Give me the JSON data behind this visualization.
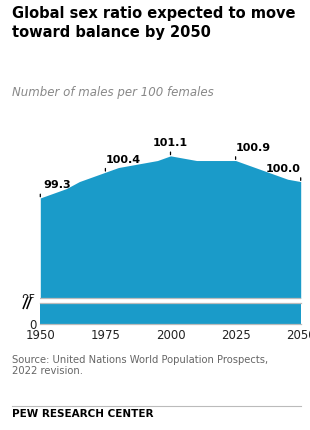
{
  "title": "Global sex ratio expected to move\ntoward balance by 2050",
  "subtitle": "Number of males per 100 females",
  "years": [
    1950,
    1955,
    1960,
    1965,
    1970,
    1975,
    1980,
    1985,
    1990,
    1995,
    2000,
    2005,
    2010,
    2015,
    2020,
    2025,
    2030,
    2035,
    2040,
    2045,
    2050
  ],
  "values": [
    99.3,
    99.5,
    99.7,
    100.0,
    100.2,
    100.4,
    100.6,
    100.7,
    100.8,
    100.9,
    101.1,
    101.0,
    100.9,
    100.9,
    100.9,
    100.9,
    100.7,
    100.5,
    100.3,
    100.1,
    100.0
  ],
  "fill_color": "#1a9bc9",
  "annotations": [
    {
      "year": 1950,
      "value": 99.3,
      "label": "99.3",
      "ha": "left"
    },
    {
      "year": 1975,
      "value": 100.4,
      "label": "100.4",
      "ha": "left"
    },
    {
      "year": 2000,
      "value": 101.1,
      "label": "101.1",
      "ha": "center"
    },
    {
      "year": 2025,
      "value": 100.9,
      "label": "100.9",
      "ha": "left"
    },
    {
      "year": 2050,
      "value": 100.0,
      "label": "100.0",
      "ha": "right"
    }
  ],
  "xticks": [
    1950,
    1975,
    2000,
    2025,
    2050
  ],
  "source_text": "Source: United Nations World Population Prospects,\n2022 revision.",
  "footer_text": "PEW RESEARCH CENTER",
  "bg_color": "#ffffff",
  "text_color": "#222222",
  "label_color": "#888888",
  "axis_color": "#bbbbbb",
  "fill_bottom": 95,
  "ylim_main": [
    94.8,
    102.8
  ],
  "xlim": [
    1950,
    2050
  ]
}
